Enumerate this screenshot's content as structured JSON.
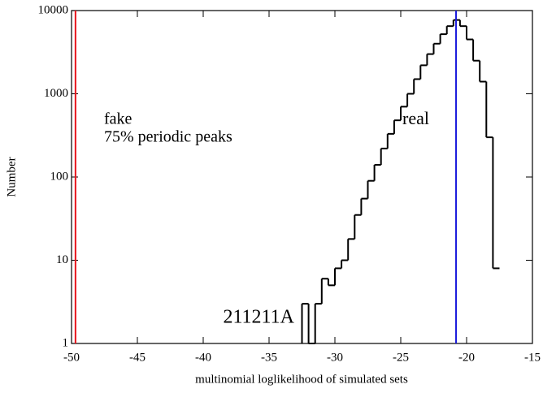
{
  "chart_data": {
    "type": "histogram",
    "x_label": "multinomial loglikelihood of simulated sets",
    "y_label": "Number",
    "bins": [
      -32.5,
      -32,
      -31.5,
      -31,
      -30.5,
      -30,
      -29.5,
      -29,
      -28.5,
      -28,
      -27.5,
      -27,
      -26.5,
      -26,
      -25.5,
      -25,
      -24.5,
      -24,
      -23.5,
      -23,
      -22.5,
      -22,
      -21.5,
      -21,
      -20.5,
      -20,
      -19.5,
      -19,
      -18.5,
      -18,
      -17.5
    ],
    "values": [
      3,
      1,
      3,
      6,
      5,
      8,
      10,
      18,
      35,
      55,
      90,
      140,
      220,
      330,
      480,
      700,
      1000,
      1500,
      2200,
      3000,
      4000,
      5200,
      6500,
      7700,
      6500,
      4500,
      2500,
      1400,
      300,
      8
    ],
    "color": "#000000",
    "xlim": [
      -50,
      -15
    ],
    "ylim": [
      1,
      10000
    ],
    "log_y": true,
    "xticks": [
      -50,
      -45,
      -40,
      -35,
      -30,
      -25,
      -20,
      -15
    ],
    "yticks": [
      1,
      10,
      100,
      1000,
      10000
    ],
    "vlines": [
      {
        "x": -49.7,
        "color": "#e8141c"
      },
      {
        "x": -20.8,
        "color": "#1a1adc"
      }
    ],
    "annotations": [
      {
        "text": "fake",
        "color": "#e8141c"
      },
      {
        "text": "75% periodic peaks",
        "color": "#e8141c"
      },
      {
        "text": "real",
        "color": "#1a1adc"
      },
      {
        "text": "211211A",
        "color": "#000000"
      }
    ]
  }
}
